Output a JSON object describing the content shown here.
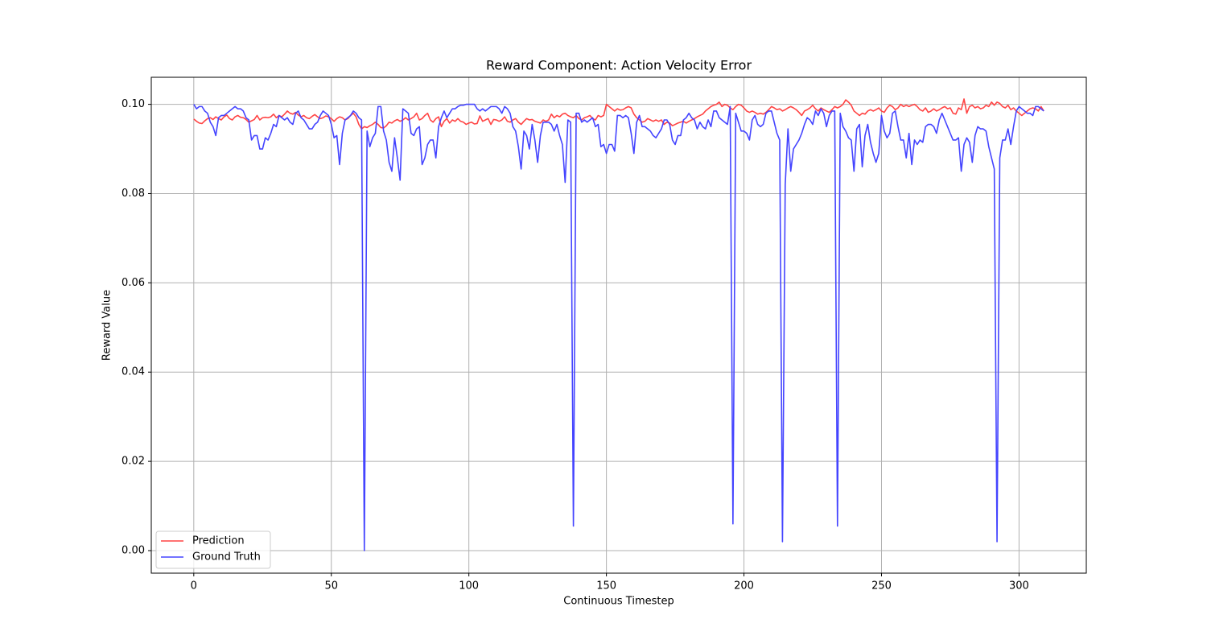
{
  "chart_data": {
    "type": "line",
    "title": "Reward Component: Action Velocity Error",
    "x_label": "Continuous Timestep",
    "y_label": "Reward Value",
    "x": [
      0,
      1,
      2,
      3,
      4,
      5,
      6,
      7,
      8,
      9,
      10,
      11,
      12,
      13,
      14,
      15,
      16,
      17,
      18,
      19,
      20,
      21,
      22,
      23,
      24,
      25,
      26,
      27,
      28,
      29,
      30,
      31,
      32,
      33,
      34,
      35,
      36,
      37,
      38,
      39,
      40,
      41,
      42,
      43,
      44,
      45,
      46,
      47,
      48,
      49,
      50,
      51,
      52,
      53,
      54,
      55,
      56,
      57,
      58,
      59,
      60,
      61,
      62,
      63,
      64,
      65,
      66,
      67,
      68,
      69,
      70,
      71,
      72,
      73,
      74,
      75,
      76,
      77,
      78,
      79,
      80,
      81,
      82,
      83,
      84,
      85,
      86,
      87,
      88,
      89,
      90,
      91,
      92,
      93,
      94,
      95,
      96,
      97,
      98,
      99,
      100,
      101,
      102,
      103,
      104,
      105,
      106,
      107,
      108,
      109,
      110,
      111,
      112,
      113,
      114,
      115,
      116,
      117,
      118,
      119,
      120,
      121,
      122,
      123,
      124,
      125,
      126,
      127,
      128,
      129,
      130,
      131,
      132,
      133,
      134,
      135,
      136,
      137,
      138,
      139,
      140,
      141,
      142,
      143,
      144,
      145,
      146,
      147,
      148,
      149,
      150,
      151,
      152,
      153,
      154,
      155,
      156,
      157,
      158,
      159,
      160,
      161,
      162,
      163,
      164,
      165,
      166,
      167,
      168,
      169,
      170,
      171,
      172,
      173,
      174,
      175,
      176,
      177,
      178,
      179,
      180,
      181,
      182,
      183,
      184,
      185,
      186,
      187,
      188,
      189,
      190,
      191,
      192,
      193,
      194,
      195,
      196,
      197,
      198,
      199,
      200,
      201,
      202,
      203,
      204,
      205,
      206,
      207,
      208,
      209,
      210,
      211,
      212,
      213,
      214,
      215,
      216,
      217,
      218,
      219,
      220,
      221,
      222,
      223,
      224,
      225,
      226,
      227,
      228,
      229,
      230,
      231,
      232,
      233,
      234,
      235,
      236,
      237,
      238,
      239,
      240,
      241,
      242,
      243,
      244,
      245,
      246,
      247,
      248,
      249,
      250,
      251,
      252,
      253,
      254,
      255,
      256,
      257,
      258,
      259,
      260,
      261,
      262,
      263,
      264,
      265,
      266,
      267,
      268,
      269,
      270,
      271,
      272,
      273,
      274,
      275,
      276,
      277,
      278,
      279,
      280,
      281,
      282,
      283,
      284,
      285,
      286,
      287,
      288,
      289,
      290,
      291,
      292,
      293,
      294,
      295,
      296,
      297,
      298,
      299,
      300,
      301,
      302,
      303,
      304,
      305,
      306,
      307,
      308,
      309
    ],
    "series": [
      {
        "name": "Prediction",
        "color": "#ff4444",
        "values": [
          0.0967,
          0.0962,
          0.0958,
          0.0957,
          0.0963,
          0.0968,
          0.097,
          0.0966,
          0.0972,
          0.0968,
          0.0965,
          0.0972,
          0.0976,
          0.0968,
          0.0965,
          0.0972,
          0.0975,
          0.0971,
          0.097,
          0.0966,
          0.096,
          0.0963,
          0.0966,
          0.0975,
          0.0965,
          0.097,
          0.0971,
          0.097,
          0.0972,
          0.0978,
          0.097,
          0.0975,
          0.0972,
          0.0978,
          0.0985,
          0.098,
          0.0978,
          0.0982,
          0.0976,
          0.0972,
          0.0975,
          0.097,
          0.0968,
          0.0973,
          0.0977,
          0.0972,
          0.0968,
          0.097,
          0.0974,
          0.0972,
          0.0968,
          0.0962,
          0.0968,
          0.0972,
          0.097,
          0.0965,
          0.0968,
          0.0975,
          0.098,
          0.0972,
          0.0955,
          0.0945,
          0.095,
          0.0948,
          0.0952,
          0.0955,
          0.096,
          0.0955,
          0.0948,
          0.0947,
          0.0952,
          0.096,
          0.0958,
          0.0963,
          0.0966,
          0.0962,
          0.0965,
          0.097,
          0.0965,
          0.0968,
          0.0972,
          0.098,
          0.0965,
          0.0968,
          0.0975,
          0.098,
          0.0965,
          0.096,
          0.0968,
          0.0972,
          0.095,
          0.0962,
          0.0968,
          0.0958,
          0.0965,
          0.0962,
          0.0968,
          0.0962,
          0.096,
          0.0955,
          0.0958,
          0.096,
          0.0956,
          0.0957,
          0.0974,
          0.0962,
          0.0965,
          0.0968,
          0.0955,
          0.0966,
          0.0965,
          0.0962,
          0.0965,
          0.0972,
          0.0962,
          0.096,
          0.0965,
          0.0968,
          0.096,
          0.0955,
          0.0962,
          0.0968,
          0.0965,
          0.0966,
          0.0962,
          0.096,
          0.0958,
          0.0965,
          0.0962,
          0.0965,
          0.0978,
          0.097,
          0.0975,
          0.0972,
          0.0978,
          0.098,
          0.0975,
          0.0972,
          0.097,
          0.0975,
          0.0968,
          0.0965,
          0.097,
          0.0972,
          0.0975,
          0.0968,
          0.0965,
          0.0975,
          0.0972,
          0.0975,
          0.1,
          0.0995,
          0.099,
          0.0985,
          0.099,
          0.0987,
          0.0988,
          0.0992,
          0.0995,
          0.0992,
          0.0978,
          0.097,
          0.0965,
          0.096,
          0.0962,
          0.0968,
          0.0965,
          0.0962,
          0.0965,
          0.0962,
          0.0965,
          0.0955,
          0.096,
          0.0958,
          0.0952,
          0.0955,
          0.0958,
          0.096,
          0.0962,
          0.0958,
          0.0962,
          0.0965,
          0.0968,
          0.0972,
          0.0975,
          0.0978,
          0.0985,
          0.099,
          0.0995,
          0.0998,
          0.1,
          0.1005,
          0.0995,
          0.1,
          0.0998,
          0.0992,
          0.0988,
          0.0995,
          0.1,
          0.0998,
          0.0992,
          0.0985,
          0.0982,
          0.0985,
          0.0982,
          0.0978,
          0.098,
          0.0978,
          0.0982,
          0.0988,
          0.0995,
          0.0992,
          0.0988,
          0.099,
          0.0985,
          0.0988,
          0.0992,
          0.0995,
          0.0992,
          0.0988,
          0.0982,
          0.0975,
          0.0985,
          0.0988,
          0.0992,
          0.0998,
          0.099,
          0.0985,
          0.0992,
          0.0988,
          0.0985,
          0.0982,
          0.0988,
          0.0995,
          0.0992,
          0.0995,
          0.1,
          0.101,
          0.1005,
          0.0998,
          0.0985,
          0.098,
          0.0975,
          0.098,
          0.0978,
          0.0985,
          0.0988,
          0.0985,
          0.0988,
          0.0992,
          0.0985,
          0.0982,
          0.0992,
          0.0998,
          0.0995,
          0.0988,
          0.0992,
          0.1,
          0.0995,
          0.0998,
          0.0995,
          0.0998,
          0.1,
          0.0995,
          0.0988,
          0.0985,
          0.0992,
          0.0982,
          0.0985,
          0.099,
          0.0985,
          0.0988,
          0.0992,
          0.0995,
          0.099,
          0.0992,
          0.098,
          0.0978,
          0.0992,
          0.0988,
          0.1012,
          0.098,
          0.0995,
          0.0998,
          0.0992,
          0.0995,
          0.099,
          0.0992,
          0.0998,
          0.0995,
          0.1005,
          0.0998,
          0.1005,
          0.1002,
          0.0995,
          0.0992,
          0.0998,
          0.0988,
          0.0992,
          0.0985,
          0.098,
          0.0975,
          0.098,
          0.0985,
          0.099,
          0.0992,
          0.099,
          0.0985,
          0.0995,
          0.0985
        ]
      },
      {
        "name": "Ground Truth",
        "color": "#4444ff",
        "values": [
          0.1,
          0.099,
          0.0995,
          0.0995,
          0.0985,
          0.098,
          0.096,
          0.095,
          0.093,
          0.097,
          0.0975,
          0.0975,
          0.098,
          0.0985,
          0.099,
          0.0995,
          0.099,
          0.099,
          0.0985,
          0.097,
          0.0965,
          0.092,
          0.093,
          0.093,
          0.09,
          0.09,
          0.0925,
          0.092,
          0.0935,
          0.0955,
          0.095,
          0.0975,
          0.097,
          0.0965,
          0.097,
          0.096,
          0.0955,
          0.098,
          0.0985,
          0.097,
          0.0965,
          0.0955,
          0.0945,
          0.0945,
          0.0955,
          0.096,
          0.0975,
          0.0985,
          0.098,
          0.0975,
          0.0955,
          0.0925,
          0.093,
          0.0865,
          0.0935,
          0.0965,
          0.097,
          0.0975,
          0.0985,
          0.098,
          0.097,
          0.0965,
          0.0,
          0.094,
          0.0905,
          0.0925,
          0.0935,
          0.0995,
          0.0995,
          0.094,
          0.092,
          0.087,
          0.085,
          0.0925,
          0.088,
          0.083,
          0.099,
          0.0985,
          0.098,
          0.0935,
          0.093,
          0.0945,
          0.095,
          0.0865,
          0.088,
          0.091,
          0.092,
          0.092,
          0.088,
          0.095,
          0.097,
          0.0985,
          0.097,
          0.098,
          0.099,
          0.099,
          0.0995,
          0.0998,
          0.0998,
          0.1,
          0.1,
          0.1,
          0.1,
          0.099,
          0.0985,
          0.099,
          0.0985,
          0.099,
          0.0995,
          0.0995,
          0.0995,
          0.099,
          0.098,
          0.0995,
          0.099,
          0.098,
          0.095,
          0.094,
          0.0905,
          0.0855,
          0.094,
          0.093,
          0.09,
          0.0955,
          0.092,
          0.087,
          0.093,
          0.096,
          0.096,
          0.096,
          0.0955,
          0.094,
          0.0955,
          0.093,
          0.091,
          0.0825,
          0.0965,
          0.096,
          0.0055,
          0.098,
          0.098,
          0.096,
          0.0965,
          0.096,
          0.0965,
          0.097,
          0.095,
          0.0955,
          0.0905,
          0.091,
          0.089,
          0.091,
          0.091,
          0.0895,
          0.0975,
          0.0975,
          0.097,
          0.0975,
          0.097,
          0.0935,
          0.089,
          0.096,
          0.0975,
          0.095,
          0.095,
          0.0945,
          0.094,
          0.093,
          0.0925,
          0.0935,
          0.0945,
          0.0965,
          0.0965,
          0.0955,
          0.092,
          0.091,
          0.093,
          0.093,
          0.0965,
          0.097,
          0.098,
          0.097,
          0.0965,
          0.0945,
          0.096,
          0.095,
          0.0945,
          0.0965,
          0.095,
          0.0985,
          0.0985,
          0.097,
          0.0965,
          0.096,
          0.0955,
          0.0995,
          0.006,
          0.098,
          0.096,
          0.094,
          0.094,
          0.0935,
          0.092,
          0.0965,
          0.0975,
          0.0955,
          0.095,
          0.0955,
          0.098,
          0.0985,
          0.0985,
          0.096,
          0.0935,
          0.092,
          0.002,
          0.082,
          0.0945,
          0.085,
          0.09,
          0.091,
          0.092,
          0.0935,
          0.0955,
          0.097,
          0.0965,
          0.0955,
          0.0985,
          0.0975,
          0.099,
          0.098,
          0.095,
          0.0975,
          0.0985,
          0.0985,
          0.0055,
          0.098,
          0.095,
          0.094,
          0.0925,
          0.092,
          0.085,
          0.0945,
          0.0955,
          0.086,
          0.093,
          0.0955,
          0.0915,
          0.089,
          0.087,
          0.089,
          0.0975,
          0.094,
          0.0925,
          0.0935,
          0.098,
          0.0985,
          0.095,
          0.092,
          0.092,
          0.088,
          0.0935,
          0.0865,
          0.092,
          0.091,
          0.092,
          0.0915,
          0.095,
          0.0955,
          0.0955,
          0.095,
          0.0935,
          0.0965,
          0.098,
          0.0965,
          0.095,
          0.0935,
          0.092,
          0.092,
          0.0925,
          0.085,
          0.091,
          0.0925,
          0.0915,
          0.087,
          0.093,
          0.095,
          0.0945,
          0.0945,
          0.094,
          0.0905,
          0.088,
          0.0855,
          0.002,
          0.088,
          0.092,
          0.092,
          0.0945,
          0.091,
          0.095,
          0.0985,
          0.0995,
          0.099,
          0.0985,
          0.098,
          0.098,
          0.0975,
          0.0995,
          0.0995,
          0.099,
          0.0985
        ]
      }
    ],
    "xlim": [
      -15.45,
      324.45
    ],
    "ylim": [
      -0.00505,
      0.10606
    ],
    "xticks": [
      0,
      50,
      100,
      150,
      200,
      250,
      300
    ],
    "yticks": [
      {
        "value": 0,
        "label": "0.00"
      },
      {
        "value": 0.02,
        "label": "0.02"
      },
      {
        "value": 0.04,
        "label": "0.04"
      },
      {
        "value": 0.06,
        "label": "0.06"
      },
      {
        "value": 0.08,
        "label": "0.08"
      },
      {
        "value": 0.1,
        "label": "0.10"
      }
    ],
    "grid": true,
    "legend": "lower-left"
  }
}
